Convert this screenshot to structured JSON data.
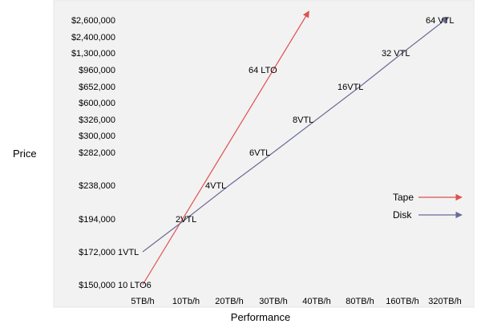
{
  "chart_data": {
    "type": "line",
    "xlabel": "Performance",
    "ylabel": "Price",
    "x_categories": [
      "5TB/h",
      "10Tb/h",
      "20TB/h",
      "30TB/h",
      "40TB/h",
      "80TB/h",
      "160TB/h",
      "320TB/h"
    ],
    "y_categories": [
      "$150,000",
      "$172,000",
      "$194,000",
      "$238,000",
      "$282,000",
      "$300,000",
      "$326,000",
      "$600,000",
      "$652,000",
      "$960,000",
      "$1,300,000",
      "$2,400,000",
      "$2,600,000"
    ],
    "grid": false,
    "legend_position": "right",
    "series": [
      {
        "name": "Tape",
        "color": "#e05050",
        "points": [
          {
            "x": "5TB/h",
            "y": "$150,000",
            "label": "10 LTO6"
          },
          {
            "x": "30TB/h",
            "y": "$960,000",
            "label": "64 LTO"
          }
        ]
      },
      {
        "name": "Disk",
        "color": "#6a6a9a",
        "points": [
          {
            "x": "5TB/h",
            "y": "$172,000",
            "label": "1VTL"
          },
          {
            "x": "10Tb/h",
            "y": "$194,000",
            "label": "2VTL"
          },
          {
            "x": "20TB/h",
            "y": "$238,000",
            "label": "4VTL"
          },
          {
            "x": "30TB/h",
            "y": "$282,000",
            "label": "6VTL"
          },
          {
            "x": "40TB/h",
            "y": "$326,000",
            "label": "8VTL"
          },
          {
            "x": "80TB/h",
            "y": "$652,000",
            "label": "16VTL"
          },
          {
            "x": "160TB/h",
            "y": "$1,300,000",
            "label": "32 VTL"
          },
          {
            "x": "320TB/h",
            "y": "$2,600,000",
            "label": "64 VTL"
          }
        ]
      }
    ]
  }
}
